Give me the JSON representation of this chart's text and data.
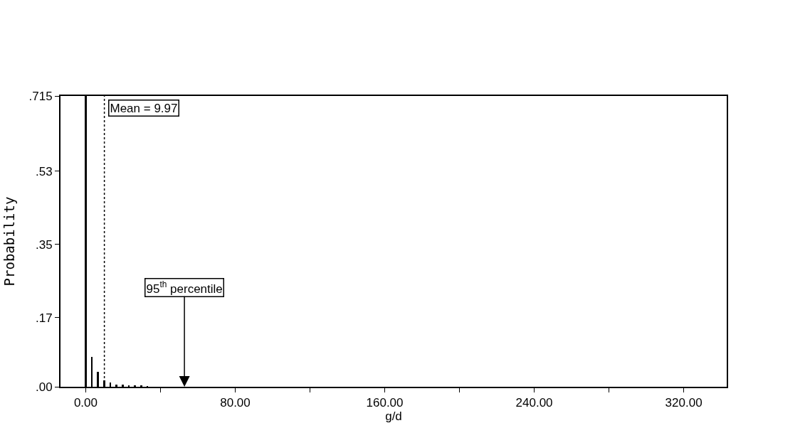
{
  "chart_data": {
    "type": "bar",
    "xlabel": "g/d",
    "ylabel": "Probability",
    "x": [
      0,
      3.3,
      6.6,
      9.9,
      13.2,
      16.5,
      19.8,
      23.1,
      26.4,
      29.7,
      33.0
    ],
    "values": [
      0.715,
      0.074,
      0.036,
      0.016,
      0.01,
      0.006,
      0.005,
      0.003,
      0.002,
      0.002,
      0.001
    ],
    "color": "#000000",
    "xlim": [
      -13.5,
      343
    ],
    "xticks": [
      {
        "value": 0,
        "label": "0.00"
      },
      {
        "value": 40,
        "label": null
      },
      {
        "value": 80,
        "label": "80.00"
      },
      {
        "value": 120,
        "label": null
      },
      {
        "value": 160,
        "label": "160.00"
      },
      {
        "value": 200,
        "label": null
      },
      {
        "value": 240,
        "label": "240.00"
      },
      {
        "value": 280,
        "label": null
      },
      {
        "value": 320,
        "label": "320.00"
      }
    ],
    "ylim": [
      0,
      0.715
    ],
    "yticks": [
      {
        "value": 0,
        "label": ".00"
      },
      {
        "value": 0.17,
        "label": ".17"
      },
      {
        "value": 0.35,
        "label": ".35"
      },
      {
        "value": 0.53,
        "label": ".53"
      },
      {
        "value": 0.715,
        "label": ".715"
      }
    ],
    "ref_lines": [
      {
        "axis": "x",
        "value": 9.97,
        "label": "Mean = 9.97",
        "line_style": "dotted",
        "color": "#000000"
      }
    ],
    "annotations": [
      "95$^{th}$ percentile"
    ]
  }
}
